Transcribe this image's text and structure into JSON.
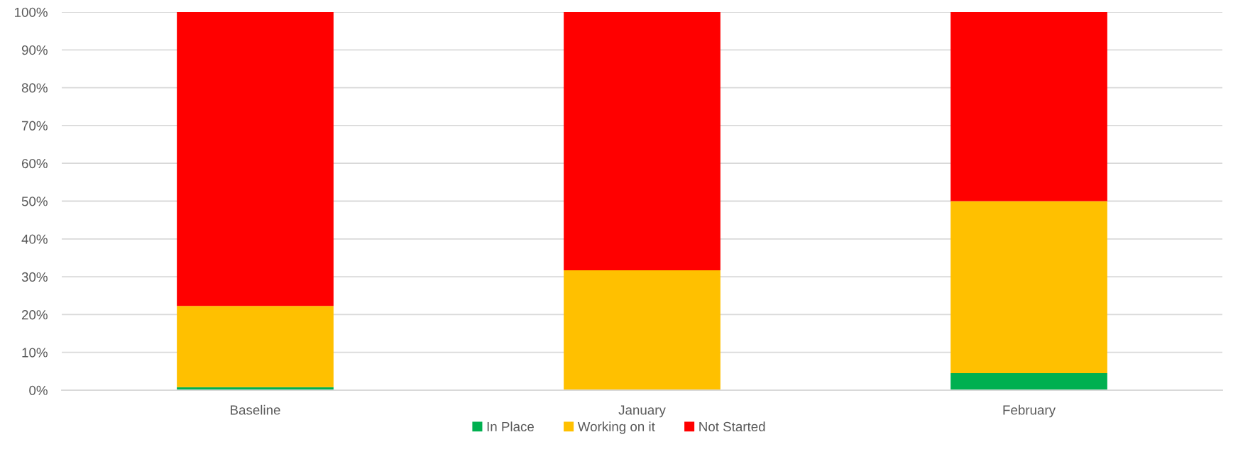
{
  "chart_data": {
    "type": "bar",
    "stacked": true,
    "categories": [
      "Baseline",
      "January",
      "February"
    ],
    "series": [
      {
        "name": "In Place",
        "color": "#00b050",
        "values": [
          0.8,
          0,
          4.5
        ]
      },
      {
        "name": "Working on it",
        "color": "#ffc000",
        "values": [
          21.5,
          31.7,
          45.5
        ]
      },
      {
        "name": "Not Started",
        "color": "#ff0000",
        "values": [
          77.7,
          68.3,
          50.0
        ]
      }
    ],
    "ylim": [
      0,
      100
    ],
    "yticks": [
      {
        "value": 0,
        "label": "0%"
      },
      {
        "value": 10,
        "label": "10%"
      },
      {
        "value": 20,
        "label": "20%"
      },
      {
        "value": 30,
        "label": "30%"
      },
      {
        "value": 40,
        "label": "40%"
      },
      {
        "value": 50,
        "label": "50%"
      },
      {
        "value": 60,
        "label": "60%"
      },
      {
        "value": 70,
        "label": "70%"
      },
      {
        "value": 80,
        "label": "80%"
      },
      {
        "value": 90,
        "label": "90%"
      },
      {
        "value": 100,
        "label": "100%"
      }
    ],
    "grid": "y",
    "legend": "bottom"
  }
}
